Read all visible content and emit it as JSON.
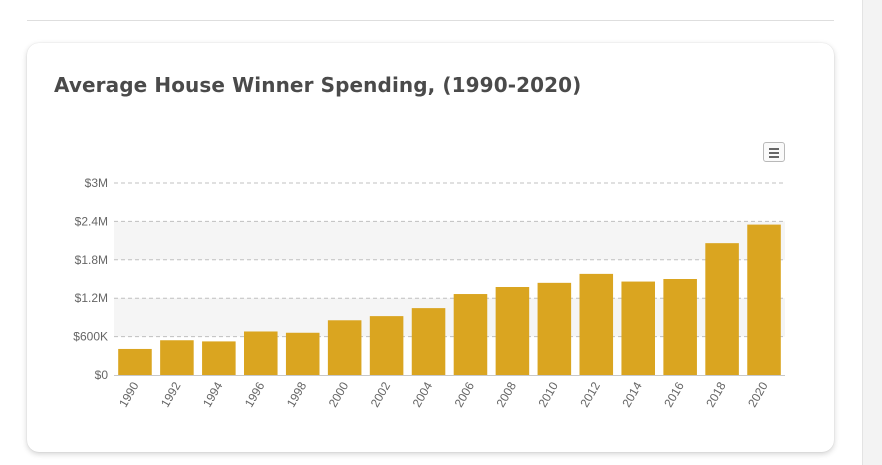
{
  "chart_data": {
    "type": "bar",
    "title": "Average House Winner Spending, (1990-2020)",
    "xlabel": "",
    "ylabel": "",
    "categories": [
      "1990",
      "1992",
      "1994",
      "1996",
      "1998",
      "2000",
      "2002",
      "2004",
      "2006",
      "2008",
      "2010",
      "2012",
      "2014",
      "2016",
      "2018",
      "2020"
    ],
    "values": [
      407000,
      543000,
      525000,
      680000,
      660000,
      855000,
      920000,
      1045000,
      1265000,
      1375000,
      1440000,
      1580000,
      1460000,
      1500000,
      2060000,
      2350000
    ],
    "ylim": [
      0,
      3000000
    ],
    "yticks": [
      0,
      600000,
      1200000,
      1800000,
      2400000,
      3000000
    ],
    "ytick_labels": [
      "$0",
      "$600K",
      "$1.2M",
      "$1.8M",
      "$2.4M",
      "$3M"
    ],
    "bar_color": "#DAA520",
    "grid": true,
    "legend": "none"
  },
  "colors": {
    "bar": "#DAA520",
    "band": "#f5f5f5",
    "grid": "#c0c0c0",
    "title": "#4a4a4a"
  },
  "toolbar": {
    "menu_icon": "hamburger-menu-icon"
  }
}
